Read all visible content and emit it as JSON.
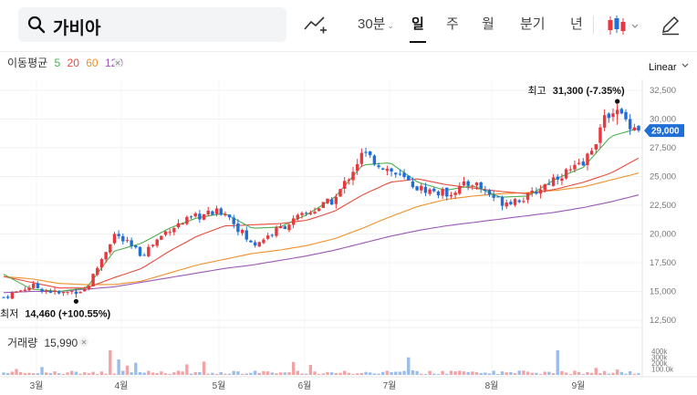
{
  "search": {
    "value": "가비아"
  },
  "toolbar": {
    "period_label": "30분",
    "tabs": [
      "일",
      "주",
      "월",
      "분기",
      "년"
    ],
    "active_tab": "일"
  },
  "chart_data": {
    "type": "candlestick",
    "scale": "Linear",
    "indicator_label": "이동평균",
    "ma_periods": [
      {
        "label": "5",
        "color": "#4caf50"
      },
      {
        "label": "20",
        "color": "#e74c3c"
      },
      {
        "label": "60",
        "color": "#f0902a"
      },
      {
        "label": "120",
        "color": "#9b59b6"
      }
    ],
    "colors": {
      "up": "#e8373d",
      "down": "#1f6fd6"
    },
    "ylim": [
      12500,
      32500
    ],
    "y_ticks": [
      "32,500",
      "30,000",
      "27,500",
      "25,000",
      "22,500",
      "20,000",
      "17,500",
      "15,000",
      "12,500"
    ],
    "y_tick_values": [
      32500,
      30000,
      27500,
      25000,
      22500,
      20000,
      17500,
      15000,
      12500
    ],
    "current_price": "29,000",
    "current_value": 29000,
    "high_label": "최고",
    "high_value_text": "31,300 (-7.35%)",
    "high_value": 31300,
    "low_label": "최저",
    "low_value_text": "14,460 (+100.55%)",
    "low_value": 14460,
    "months": [
      "3월",
      "4월",
      "5월",
      "6월",
      "7월",
      "8월",
      "9월"
    ],
    "volume_label": "거래량",
    "volume_value": "15,990",
    "volume_ticks": [
      "400k",
      "300k",
      "200k",
      "100.0k"
    ],
    "volume_tick_values": [
      400000,
      300000,
      200000,
      100000
    ],
    "anchors": [
      14500,
      15500,
      14800,
      15200,
      20000,
      18200,
      20500,
      21500,
      22000,
      19000,
      20500,
      21800,
      23000,
      27000,
      25500,
      24000,
      23500,
      24500,
      22800,
      23200,
      25000,
      26000,
      31000,
      29000
    ],
    "ma_anchors": {
      "5": [
        16500,
        15200,
        15000,
        15300,
        18500,
        19200,
        20500,
        21400,
        21800,
        20500,
        20600,
        21700,
        23200,
        26000,
        26200,
        24500,
        23800,
        24200,
        23200,
        23300,
        24800,
        25800,
        28500,
        29200
      ],
      "20": [
        16300,
        15800,
        15300,
        15300,
        16200,
        17000,
        18500,
        19800,
        20700,
        20800,
        20900,
        21200,
        22000,
        23400,
        24500,
        24800,
        24300,
        24000,
        23700,
        23500,
        23900,
        24500,
        25300,
        26600
      ],
      "60": [
        16300,
        16100,
        15700,
        15600,
        15600,
        15900,
        16600,
        17300,
        17800,
        18300,
        18600,
        19000,
        19600,
        20500,
        21500,
        22400,
        23000,
        23300,
        23500,
        23600,
        23800,
        24100,
        24700,
        25300
      ],
      "120": [
        14900,
        15000,
        15000,
        15200,
        15400,
        15800,
        16200,
        16600,
        17000,
        17300,
        17700,
        18100,
        18600,
        19200,
        19800,
        20300,
        20700,
        21000,
        21300,
        21600,
        21900,
        22300,
        22800,
        23400
      ]
    }
  }
}
